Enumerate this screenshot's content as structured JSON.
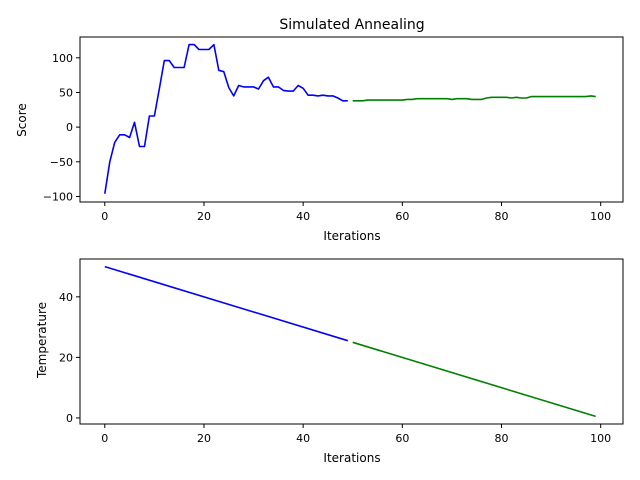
{
  "chart_data": [
    {
      "type": "line",
      "title": "Simulated Annealing",
      "xlabel": "Iterations",
      "ylabel": "Score",
      "xlim": [
        -5,
        104.5
      ],
      "ylim": [
        -108,
        130
      ],
      "xticks": [
        0,
        20,
        40,
        60,
        80,
        100
      ],
      "yticks": [
        -100,
        -50,
        0,
        50,
        100
      ],
      "grid": false,
      "series": [
        {
          "color": "#0000ff",
          "x": [
            0,
            1,
            2,
            3,
            4,
            5,
            6,
            7,
            8,
            9,
            10,
            11,
            12,
            13,
            14,
            15,
            16,
            17,
            18,
            19,
            20,
            21,
            22,
            23,
            24,
            25,
            26,
            27,
            28,
            29,
            30,
            31,
            32,
            33,
            34,
            35,
            36,
            37,
            38,
            39,
            40,
            41,
            42,
            43,
            44,
            45,
            46,
            47,
            48,
            49
          ],
          "y": [
            -96,
            -50,
            -22,
            -11,
            -11,
            -15,
            7,
            -28,
            -28,
            16,
            16,
            55,
            96,
            96,
            86,
            86,
            86,
            119,
            119,
            112,
            112,
            112,
            119,
            82,
            80,
            57,
            45,
            60,
            58,
            58,
            58,
            55,
            67,
            72,
            58,
            58,
            53,
            52,
            52,
            60,
            56,
            46,
            46,
            45,
            46,
            45,
            45,
            42,
            38,
            38
          ]
        },
        {
          "color": "#008000",
          "x": [
            50,
            51,
            52,
            53,
            54,
            55,
            56,
            57,
            58,
            59,
            60,
            61,
            62,
            63,
            64,
            65,
            66,
            67,
            68,
            69,
            70,
            71,
            72,
            73,
            74,
            75,
            76,
            77,
            78,
            79,
            80,
            81,
            82,
            83,
            84,
            85,
            86,
            87,
            88,
            89,
            90,
            91,
            92,
            93,
            94,
            95,
            96,
            97,
            98,
            99
          ],
          "y": [
            38,
            38,
            38,
            39,
            39,
            39,
            39,
            39,
            39,
            39,
            39,
            40,
            40,
            41,
            41,
            41,
            41,
            41,
            41,
            41,
            40,
            41,
            41,
            41,
            40,
            40,
            40,
            42,
            43,
            43,
            43,
            43,
            42,
            43,
            42,
            42,
            44,
            44,
            44,
            44,
            44,
            44,
            44,
            44,
            44,
            44,
            44,
            44,
            45,
            44
          ]
        }
      ]
    },
    {
      "type": "line",
      "title": "",
      "xlabel": "Iterations",
      "ylabel": "Temperature",
      "xlim": [
        -5,
        104.5
      ],
      "ylim": [
        -2,
        52.5
      ],
      "xticks": [
        0,
        20,
        40,
        60,
        80,
        100
      ],
      "yticks": [
        0,
        20,
        40
      ],
      "grid": false,
      "series": [
        {
          "color": "#0000ff",
          "x": [
            0,
            49
          ],
          "y": [
            50,
            25.5
          ]
        },
        {
          "color": "#008000",
          "x": [
            50,
            99
          ],
          "y": [
            25,
            0.5
          ]
        }
      ]
    }
  ]
}
